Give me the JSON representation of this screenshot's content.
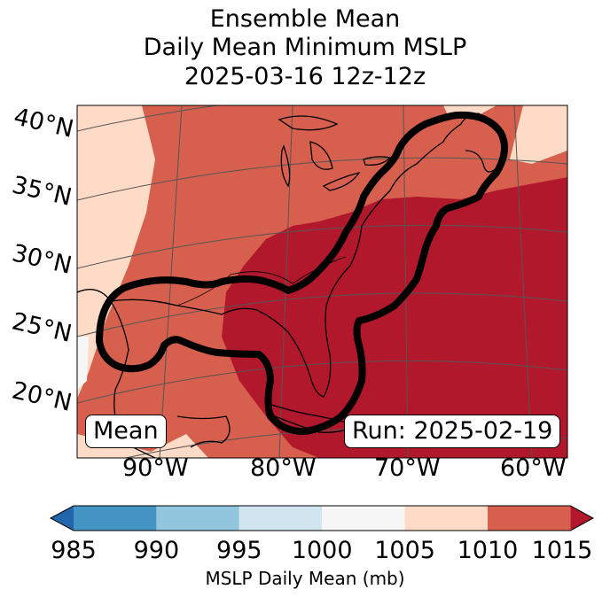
{
  "title": {
    "line1": "Ensemble Mean",
    "line2": "Daily Mean Minimum MSLP",
    "line3": "2025-03-16 12z-12z"
  },
  "map": {
    "lat_labels": [
      "40°N",
      "35°N",
      "30°N",
      "25°N",
      "20°N"
    ],
    "lon_labels": [
      "90°W",
      "80°W",
      "70°W",
      "60°W"
    ],
    "mean_label": "Mean",
    "run_label": "Run: 2025-02-19",
    "contour_color": "#000000"
  },
  "colorbar": {
    "label": "MSLP Daily Mean (mb)",
    "ticks": [
      "985",
      "990",
      "995",
      "1000",
      "1005",
      "1010",
      "1015"
    ],
    "colors": [
      "#4393c3",
      "#92c5de",
      "#d1e5f0",
      "#f7f7f7",
      "#fddbc7",
      "#d6604d",
      "#b2182b"
    ],
    "under_color": "#2166ac",
    "over_color": "#b2182b"
  }
}
